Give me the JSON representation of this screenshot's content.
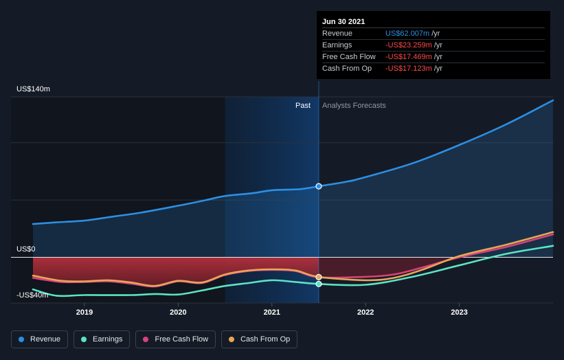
{
  "chart_data": {
    "type": "line",
    "y_axis_labels": [
      "US$140m",
      "US$0",
      "-US$40m"
    ],
    "ylim": [
      -40,
      140
    ],
    "xlim": [
      2018.45,
      2024.0
    ],
    "x_ticks": [
      {
        "value": 2019.0,
        "label": "2019"
      },
      {
        "value": 2020.0,
        "label": "2020"
      },
      {
        "value": 2021.0,
        "label": "2021"
      },
      {
        "value": 2022.0,
        "label": "2022"
      },
      {
        "value": 2023.0,
        "label": "2023"
      }
    ],
    "past_label": "Past",
    "forecast_label": "Analysts Forecasts",
    "highlight_start": 2020.5,
    "divider_x": 2021.5,
    "series": [
      {
        "name": "Revenue",
        "color": "#2d8fe3",
        "key": "revenue",
        "points": [
          [
            2018.45,
            29
          ],
          [
            2018.7,
            30.5
          ],
          [
            2019.0,
            32
          ],
          [
            2019.3,
            35.5
          ],
          [
            2019.6,
            39
          ],
          [
            2020.0,
            45
          ],
          [
            2020.3,
            50
          ],
          [
            2020.5,
            53.5
          ],
          [
            2020.8,
            56
          ],
          [
            2021.0,
            58.5
          ],
          [
            2021.3,
            59.5
          ],
          [
            2021.5,
            62
          ],
          [
            2021.8,
            66
          ],
          [
            2022.0,
            70
          ],
          [
            2022.5,
            82
          ],
          [
            2023.0,
            98
          ],
          [
            2023.5,
            116
          ],
          [
            2024.0,
            137
          ]
        ]
      },
      {
        "name": "Earnings",
        "color": "#5de3c4",
        "key": "earnings",
        "points": [
          [
            2018.45,
            -28
          ],
          [
            2018.7,
            -33.5
          ],
          [
            2019.0,
            -33
          ],
          [
            2019.5,
            -33
          ],
          [
            2019.75,
            -32
          ],
          [
            2020.0,
            -32.5
          ],
          [
            2020.25,
            -29
          ],
          [
            2020.5,
            -25
          ],
          [
            2020.75,
            -22.5
          ],
          [
            2021.0,
            -20
          ],
          [
            2021.25,
            -21.5
          ],
          [
            2021.5,
            -23.259
          ],
          [
            2022.0,
            -24
          ],
          [
            2022.5,
            -17
          ],
          [
            2023.0,
            -7
          ],
          [
            2023.5,
            3
          ],
          [
            2024.0,
            10
          ]
        ]
      },
      {
        "name": "Free Cash Flow",
        "color": "#d8437a",
        "key": "fcf",
        "points": [
          [
            2018.45,
            -18
          ],
          [
            2018.75,
            -21.5
          ],
          [
            2019.0,
            -21.5
          ],
          [
            2019.25,
            -21
          ],
          [
            2019.5,
            -23
          ],
          [
            2019.75,
            -25.5
          ],
          [
            2020.0,
            -21
          ],
          [
            2020.25,
            -22.5
          ],
          [
            2020.5,
            -15.5
          ],
          [
            2020.75,
            -12
          ],
          [
            2021.0,
            -11
          ],
          [
            2021.25,
            -12
          ],
          [
            2021.5,
            -17.469
          ],
          [
            2022.0,
            -17
          ],
          [
            2022.3,
            -15
          ],
          [
            2022.6,
            -9
          ],
          [
            2023.0,
            0
          ],
          [
            2023.5,
            9
          ],
          [
            2024.0,
            20
          ]
        ]
      },
      {
        "name": "Cash From Op",
        "color": "#e7a659",
        "key": "cfo",
        "points": [
          [
            2018.45,
            -16
          ],
          [
            2018.75,
            -20.5
          ],
          [
            2019.0,
            -21
          ],
          [
            2019.25,
            -20
          ],
          [
            2019.5,
            -22
          ],
          [
            2019.75,
            -25
          ],
          [
            2020.0,
            -20.5
          ],
          [
            2020.25,
            -22
          ],
          [
            2020.5,
            -15
          ],
          [
            2020.75,
            -11.5
          ],
          [
            2021.0,
            -10.5
          ],
          [
            2021.25,
            -11.5
          ],
          [
            2021.5,
            -17.123
          ],
          [
            2022.0,
            -20
          ],
          [
            2022.3,
            -18
          ],
          [
            2022.6,
            -11
          ],
          [
            2023.0,
            1
          ],
          [
            2023.5,
            11
          ],
          [
            2024.0,
            22
          ]
        ]
      }
    ]
  },
  "tooltip": {
    "date": "Jun 30 2021",
    "rows": [
      {
        "label": "Revenue",
        "value": "US$62.007m",
        "unit": "/yr",
        "color": "#2d8fe3"
      },
      {
        "label": "Earnings",
        "value": "-US$23.259m",
        "unit": "/yr",
        "color": "#ff4a4a"
      },
      {
        "label": "Free Cash Flow",
        "value": "-US$17.469m",
        "unit": "/yr",
        "color": "#ff4a4a"
      },
      {
        "label": "Cash From Op",
        "value": "-US$17.123m",
        "unit": "/yr",
        "color": "#ff4a4a"
      }
    ]
  },
  "legend": [
    {
      "label": "Revenue",
      "color": "#2d8fe3"
    },
    {
      "label": "Earnings",
      "color": "#5de3c4"
    },
    {
      "label": "Free Cash Flow",
      "color": "#d8437a"
    },
    {
      "label": "Cash From Op",
      "color": "#e7a659"
    }
  ]
}
